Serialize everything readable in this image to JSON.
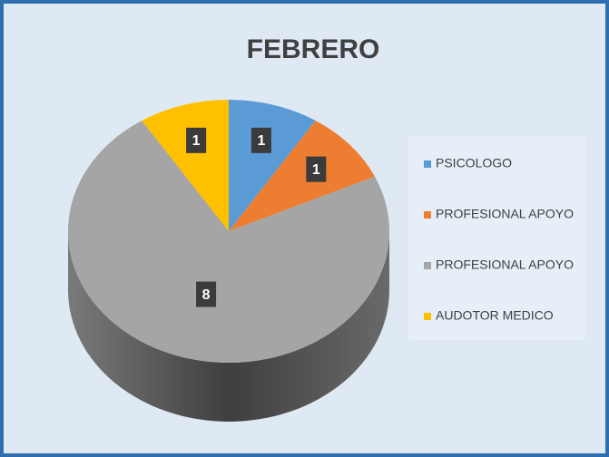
{
  "chart_data": {
    "type": "pie",
    "title": "FEBRERO",
    "categories": [
      "PSICOLOGO",
      "PROFESIONAL APOYO",
      "PROFESIONAL APOYO",
      "AUDOTOR MEDICO"
    ],
    "values": [
      1,
      1,
      8,
      1
    ],
    "colors": [
      "#5b9bd5",
      "#ed7d31",
      "#a5a5a5",
      "#ffc000"
    ],
    "legend": "right"
  }
}
